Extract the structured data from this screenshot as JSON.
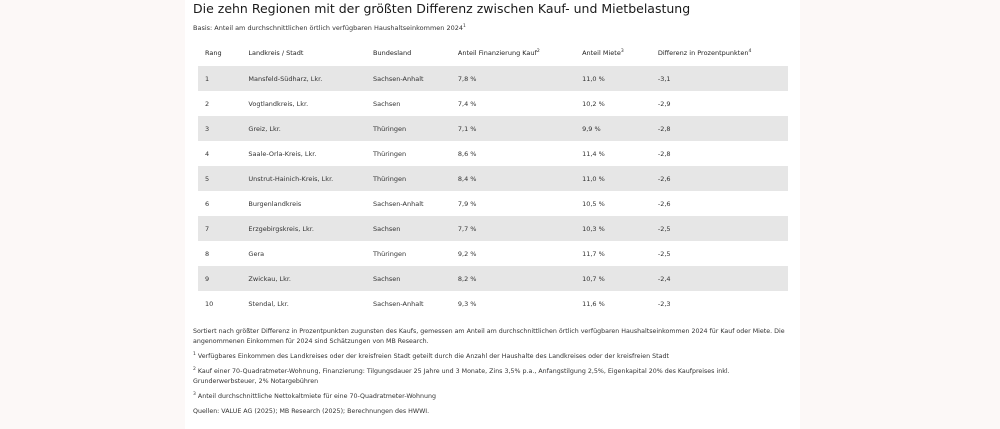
{
  "title": "Die zehn Regionen mit der größten Differenz zwischen Kauf- und Mietbelastung",
  "subtitle": "Basis: Anteil am durchschnittlichen örtlich verfügbaren Haushaltseinkommen 2024",
  "subtitle_sup": "1",
  "table": {
    "headers": [
      {
        "label": "Rang",
        "sup": ""
      },
      {
        "label": "Landkreis / Stadt",
        "sup": ""
      },
      {
        "label": "Bundesland",
        "sup": ""
      },
      {
        "label": "Anteil Finanzierung Kauf",
        "sup": "2"
      },
      {
        "label": "Anteil Miete",
        "sup": "3"
      },
      {
        "label": "Differenz in Prozentpunkten",
        "sup": "4"
      }
    ],
    "rows": [
      [
        "1",
        "Mansfeld-Südharz, Lkr.",
        "Sachsen-Anhalt",
        "7,8 %",
        "11,0 %",
        "-3,1"
      ],
      [
        "2",
        "Vogtlandkreis, Lkr.",
        "Sachsen",
        "7,4 %",
        "10,2 %",
        "-2,9"
      ],
      [
        "3",
        "Greiz, Lkr.",
        "Thüringen",
        "7,1 %",
        "9,9 %",
        "-2,8"
      ],
      [
        "4",
        "Saale-Orla-Kreis, Lkr.",
        "Thüringen",
        "8,6 %",
        "11,4 %",
        "-2,8"
      ],
      [
        "5",
        "Unstrut-Hainich-Kreis, Lkr.",
        "Thüringen",
        "8,4 %",
        "11,0 %",
        "-2,6"
      ],
      [
        "6",
        "Burgenlandkreis",
        "Sachsen-Anhalt",
        "7,9 %",
        "10,5 %",
        "-2,6"
      ],
      [
        "7",
        "Erzgebirgskreis, Lkr.",
        "Sachsen",
        "7,7 %",
        "10,3 %",
        "-2,5"
      ],
      [
        "8",
        "Gera",
        "Thüringen",
        "9,2 %",
        "11,7 %",
        "-2,5"
      ],
      [
        "9",
        "Zwickau, Lkr.",
        "Sachsen",
        "8,2 %",
        "10,7 %",
        "-2,4"
      ],
      [
        "10",
        "Stendal, Lkr.",
        "Sachsen-Anhalt",
        "9,3 %",
        "11,6 %",
        "-2,3"
      ]
    ]
  },
  "notes": {
    "sorting": "Sortiert nach größter Differenz in Prozentpunkten zugunsten des Kaufs, gemessen am Anteil am durchschnittlichen örtlich verfügbaren Haushaltseinkommen 2024 für Kauf oder Miete. Die angenommenen Einkommen für 2024 sind Schätzungen von MB Research.",
    "footnotes": [
      {
        "sup": "1",
        "text": "Verfügbares Einkommen des Landkreises oder der kreisfreien Stadt geteilt durch die Anzahl der Haushalte des Landkreises oder der kreisfreien Stadt"
      },
      {
        "sup": "2",
        "text": "Kauf einer 70-Quadratmeter-Wohnung, Finanzierung: Tilgungsdauer 25 Jahre und 3 Monate, Zins 3,5% p.a., Anfangstilgung 2,5%, Eigenkapital 20% des Kaufpreises inkl. Grunderwerbsteuer, 2% Notargebühren"
      },
      {
        "sup": "3",
        "text": "Anteil durchschnittliche Nettokaltmiete für eine 70-Quadratmeter-Wohnung"
      }
    ],
    "sources": "Quellen: VALUE AG (2025); MB Research (2025); Berechnungen des HWWI."
  },
  "colors": {
    "page_bg": "#fcf8f7",
    "stripe": "#e6e6e6"
  }
}
